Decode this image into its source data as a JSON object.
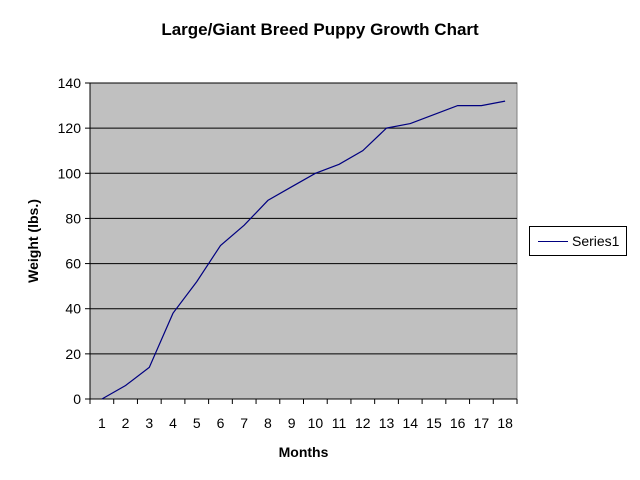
{
  "chart_data": {
    "type": "line",
    "title": "Large/Giant Breed Puppy Growth Chart",
    "xlabel": "Months",
    "ylabel": "Weight (lbs.)",
    "x": [
      1,
      2,
      3,
      4,
      5,
      6,
      7,
      8,
      9,
      10,
      11,
      12,
      13,
      14,
      15,
      16,
      17,
      18
    ],
    "ylim": [
      0,
      140
    ],
    "yticks": [
      0,
      20,
      40,
      60,
      80,
      100,
      120,
      140
    ],
    "grid": true,
    "legend_position": "right",
    "plot_background": "#C0C0C0",
    "series": [
      {
        "name": "Series1",
        "color": "#000080",
        "values": [
          0,
          6,
          14,
          38,
          52,
          68,
          77,
          88,
          94,
          100,
          104,
          110,
          120,
          122,
          126,
          130,
          130,
          132
        ]
      }
    ]
  }
}
